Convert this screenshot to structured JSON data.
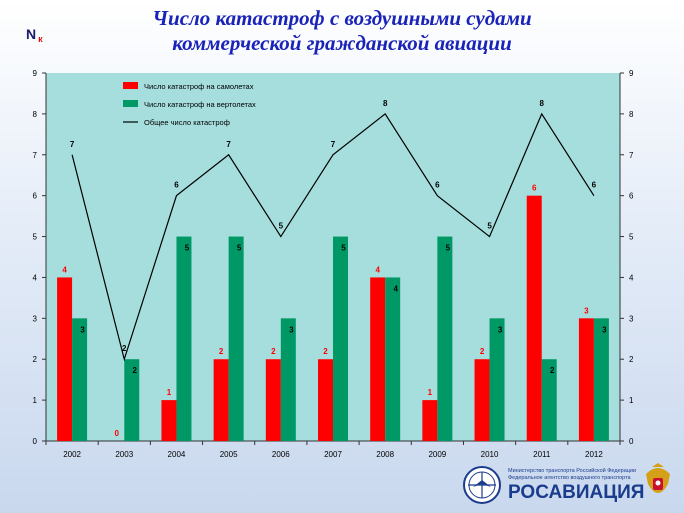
{
  "title": {
    "line1": "Число катастроф с воздушными судами",
    "line2": "коммерческой гражданской авиации"
  },
  "y_symbol": {
    "main": "N",
    "sub": "к"
  },
  "logo": {
    "line1": "Министерство транспорта Российской Федерации",
    "line2": "Федеральное агентство воздушного транспорта",
    "name": "РОСАВИАЦИЯ"
  },
  "colors": {
    "plane": "#ff0000",
    "heli": "#009966",
    "total": "#000000",
    "plot_bg": "#a6dede",
    "title": "#1a23b8"
  },
  "chart_data": {
    "type": "bar",
    "categories": [
      "2002",
      "2003",
      "2004",
      "2005",
      "2006",
      "2007",
      "2008",
      "2009",
      "2010",
      "2011",
      "2012"
    ],
    "series": [
      {
        "name": "Число катастроф на самолетах",
        "type": "bar",
        "color": "#ff0000",
        "values": [
          4,
          0,
          1,
          2,
          2,
          2,
          4,
          1,
          2,
          6,
          3
        ]
      },
      {
        "name": "Число катастроф на вертолетах",
        "type": "bar",
        "color": "#009966",
        "values": [
          3,
          2,
          5,
          5,
          3,
          5,
          4,
          5,
          3,
          2,
          3
        ]
      },
      {
        "name": "Общее число катастроф",
        "type": "line",
        "color": "#000000",
        "values": [
          7,
          2,
          6,
          7,
          5,
          7,
          8,
          6,
          5,
          8,
          6
        ]
      }
    ],
    "ylim": [
      0,
      9
    ],
    "yticks": [
      "0",
      "1",
      "2",
      "3",
      "4",
      "5",
      "6",
      "7",
      "8",
      "9"
    ],
    "secondary_y": true,
    "legend_position": "top-left",
    "grid": false
  }
}
